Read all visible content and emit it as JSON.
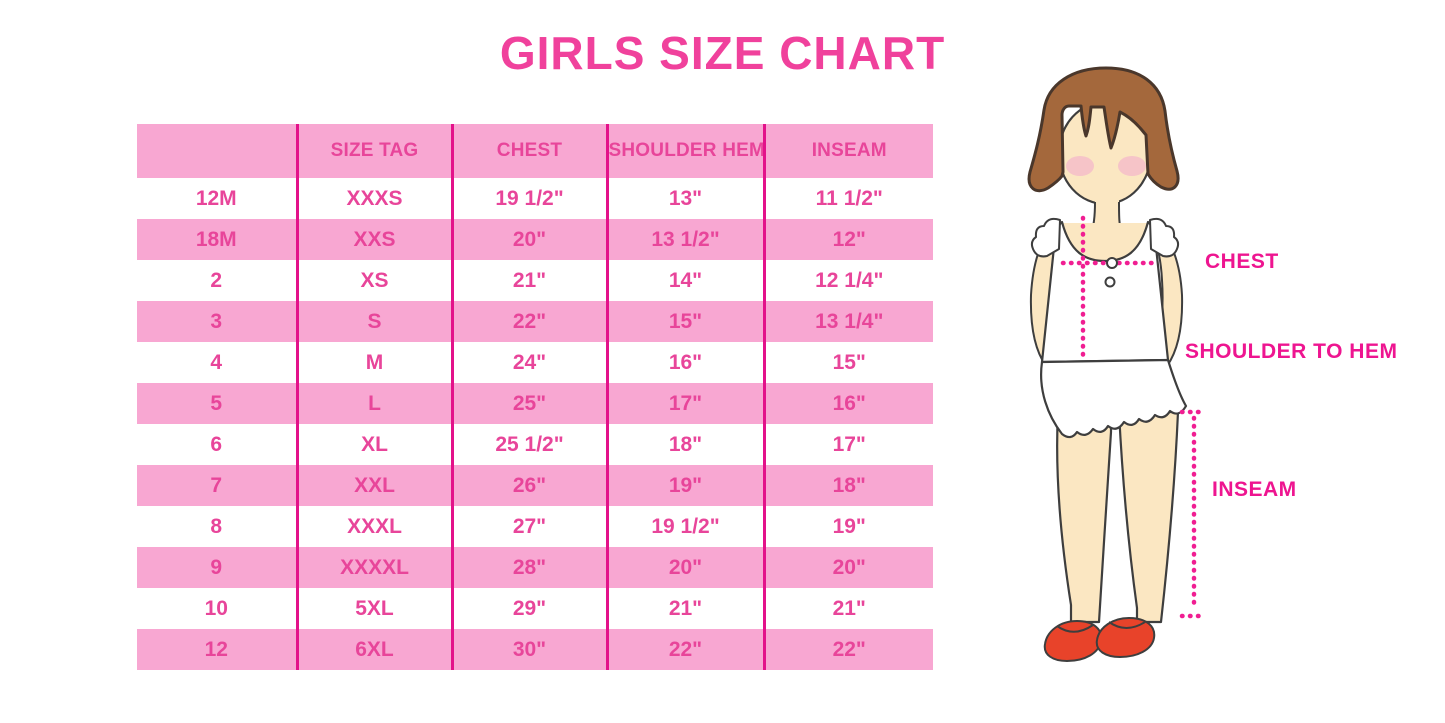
{
  "title": "GIRLS SIZE CHART",
  "table": {
    "columns": [
      "",
      "SIZE TAG",
      "CHEST",
      "SHOULDER HEM",
      "INSEAM"
    ],
    "rows": [
      [
        "12M",
        "XXXS",
        "19 1/2\"",
        "13\"",
        "11 1/2\""
      ],
      [
        "18M",
        "XXS",
        "20\"",
        "13 1/2\"",
        "12\""
      ],
      [
        "2",
        "XS",
        "21\"",
        "14\"",
        "12 1/4\""
      ],
      [
        "3",
        "S",
        "22\"",
        "15\"",
        "13 1/4\""
      ],
      [
        "4",
        "M",
        "24\"",
        "16\"",
        "15\""
      ],
      [
        "5",
        "L",
        "25\"",
        "17\"",
        "16\""
      ],
      [
        "6",
        "XL",
        "25 1/2\"",
        "18\"",
        "17\""
      ],
      [
        "7",
        "XXL",
        "26\"",
        "19\"",
        "18\""
      ],
      [
        "8",
        "XXXL",
        "27\"",
        "19 1/2\"",
        "19\""
      ],
      [
        "9",
        "XXXXL",
        "28\"",
        "20\"",
        "20\""
      ],
      [
        "10",
        "5XL",
        "29\"",
        "21\"",
        "21\""
      ],
      [
        "12",
        "6XL",
        "30\"",
        "22\"",
        "22\""
      ]
    ]
  },
  "chart_data": {
    "type": "table",
    "title": "GIRLS SIZE CHART",
    "columns": [
      "",
      "SIZE TAG",
      "CHEST",
      "SHOULDER HEM",
      "INSEAM"
    ],
    "rows": [
      [
        "12M",
        "XXXS",
        "19 1/2\"",
        "13\"",
        "11 1/2\""
      ],
      [
        "18M",
        "XXS",
        "20\"",
        "13 1/2\"",
        "12\""
      ],
      [
        "2",
        "XS",
        "21\"",
        "14\"",
        "12 1/4\""
      ],
      [
        "3",
        "S",
        "22\"",
        "15\"",
        "13 1/4\""
      ],
      [
        "4",
        "M",
        "24\"",
        "16\"",
        "15\""
      ],
      [
        "5",
        "L",
        "25\"",
        "17\"",
        "16\""
      ],
      [
        "6",
        "XL",
        "25 1/2\"",
        "18\"",
        "17\""
      ],
      [
        "7",
        "XXL",
        "26\"",
        "19\"",
        "18\""
      ],
      [
        "8",
        "XXXL",
        "27\"",
        "19 1/2\"",
        "19\""
      ],
      [
        "9",
        "XXXXL",
        "28\"",
        "20\"",
        "20\""
      ],
      [
        "10",
        "5XL",
        "29\"",
        "21\"",
        "21\""
      ],
      [
        "12",
        "6XL",
        "30\"",
        "22\"",
        "22\""
      ]
    ],
    "layout_hints": {
      "striped": "alternating pink/white rows",
      "grid": "vertical magenta dividers only"
    }
  },
  "figure": {
    "labels": {
      "chest": "CHEST",
      "shoulder_to_hem": "SHOULDER TO HEM",
      "inseam": "INSEAM"
    }
  },
  "colors": {
    "title_pink": "#F0419C",
    "row_pink": "#F8A7D2",
    "cell_text_pink": "#E8459A",
    "divider_magenta": "#E3128A",
    "label_magenta": "#EE1590",
    "measure_line_magenta": "#F01E92",
    "hair_brown": "#A4683C",
    "hair_outline": "#4A372B",
    "skin": "#FBE7C2",
    "blush": "#F4BDC9",
    "shoe_red": "#E8432A",
    "outline_dark": "#3E3E3E",
    "dress_white": "#FFFFFF"
  }
}
